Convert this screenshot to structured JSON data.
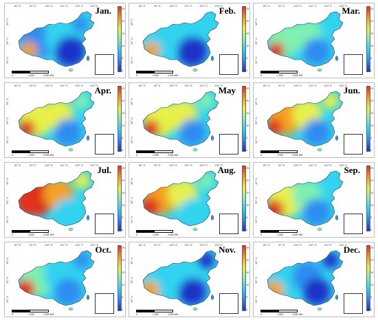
{
  "months": [
    "Jan.",
    "Feb.",
    "Mar.",
    "Apr.",
    "May",
    "Jun.",
    "Jul.",
    "Aug.",
    "Sep.",
    "Oct.",
    "Nov.",
    "Dec."
  ],
  "longitudes": [
    "80° E",
    "90° E",
    "100° E",
    "110° E",
    "120° E",
    "130° E"
  ],
  "latitudes": [
    "40° N",
    "30° N",
    "20° N"
  ],
  "colorbar_ticks": [
    "25",
    "20",
    "15",
    "10",
    "5",
    "0"
  ],
  "scale_labels": [
    "0",
    "1,000",
    "2,000 KM"
  ],
  "palette": [
    "#1e32c8",
    "#2f8cf0",
    "#31d3f0",
    "#7ff0b0",
    "#e8f04a",
    "#f4a020",
    "#e0301a"
  ]
}
